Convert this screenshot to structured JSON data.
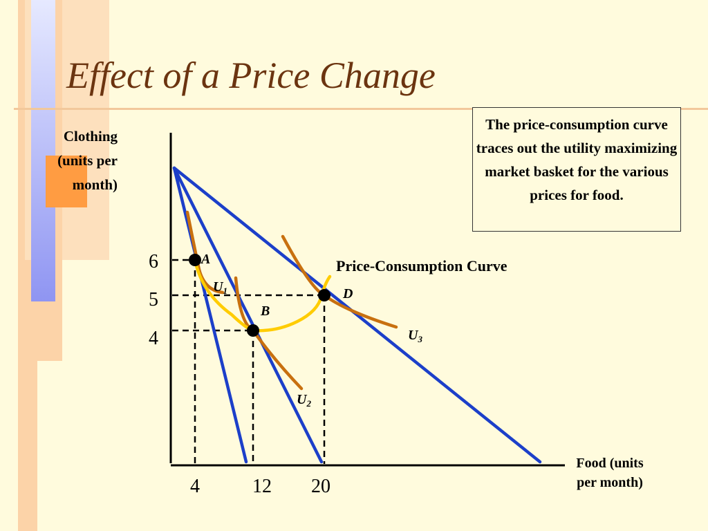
{
  "title": "Effect of a Price Change",
  "y_axis_label": [
    "Clothing",
    "(units per",
    "month)"
  ],
  "x_axis_label": [
    "Food (units",
    "per month)"
  ],
  "note_box": "The price-consumption curve traces out the utility maximizing market basket for the various prices for food.",
  "colors": {
    "budget_line": "#1c3fc9",
    "indifference_curve": "#c8700f",
    "pcc_curve": "#ffcc00",
    "title": "#6b3410"
  },
  "chart_data": {
    "type": "diagram",
    "x_ticks": [
      "4",
      "12",
      "20"
    ],
    "y_ticks": [
      "6",
      "5",
      "4"
    ],
    "points": [
      {
        "label": "A",
        "x": 4,
        "y": 6
      },
      {
        "label": "B",
        "x": 12,
        "y": 4
      },
      {
        "label": "D",
        "x": 20,
        "y": 5
      }
    ],
    "curve_labels": {
      "pcc": "Price-Consumption Curve",
      "u1": "U",
      "u1_sub": "1",
      "u2": "U",
      "u2_sub": "2",
      "u3": "U",
      "u3_sub": "3"
    }
  }
}
